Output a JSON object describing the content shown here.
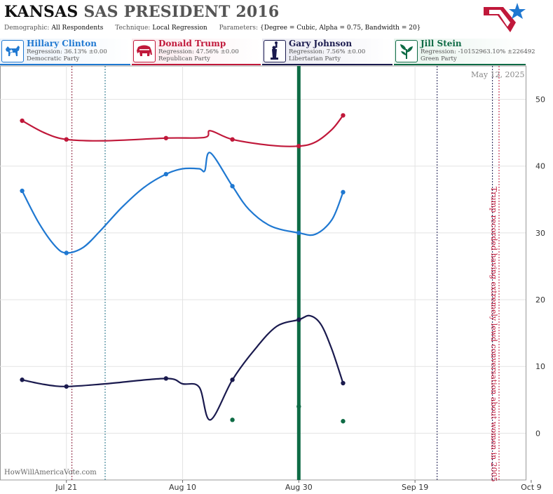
{
  "header": {
    "state": "KANSAS",
    "title_rest": "SAS PRESIDENT 2016",
    "demographic_label": "Demographic:",
    "demographic_value": "All Respondents",
    "technique_label": "Technique:",
    "technique_value": "Local Regression",
    "parameters_label": "Parameters:",
    "parameters_value": "{Degree = Cubic, Alpha = 0.75, Bandwidth = 20}"
  },
  "candidates": [
    {
      "name": "Hillary Clinton",
      "regression": "Regression: 36.13% ±0.00",
      "party": "Democratic Party",
      "color": "#1f78d1",
      "icon": "donkey-icon"
    },
    {
      "name": "Donald Trump",
      "regression": "Regression: 47.56% ±0.00",
      "party": "Republican Party",
      "color": "#c0183a",
      "icon": "elephant-icon"
    },
    {
      "name": "Gary Johnson",
      "regression": "Regression: 7.56% ±0.00",
      "party": "Libertarian Party",
      "color": "#1a1a4e",
      "icon": "statue-of-liberty-icon"
    },
    {
      "name": "Jill Stein",
      "regression": "Regression: -10152963.10% ±226492",
      "party": "Green Party",
      "color": "#0e6b45",
      "icon": "plant-icon"
    }
  ],
  "watermark": "HowWillAmericaVote.com",
  "date_label": "May 12, 2025",
  "annotation": "Trump recorded having extremely lewd conversation about women in 2005",
  "chart_data": {
    "type": "line",
    "x_tick_labels": [
      "Jul 21",
      "Aug 10",
      "Aug 30",
      "Sep 19",
      "Oct 9"
    ],
    "y_ticks": [
      0,
      10,
      20,
      30,
      40,
      50
    ],
    "ylim": [
      -7,
      55
    ],
    "xlim": [
      "2016-07-09",
      "2016-10-12"
    ],
    "grid": true,
    "highlight_line_date": "2016-09-01",
    "series": [
      {
        "name": "Hillary Clinton",
        "color": "#1f78d1",
        "points": [
          [
            "2016-07-13",
            36.3
          ],
          [
            "2016-07-21",
            27.0
          ],
          [
            "2016-08-08",
            38.8
          ],
          [
            "2016-08-20",
            37.0
          ],
          [
            "2016-09-01",
            30.0
          ],
          [
            "2016-09-09",
            36.1
          ]
        ],
        "curve": [
          [
            "2016-07-13",
            36.3
          ],
          [
            "2016-07-16",
            31.5
          ],
          [
            "2016-07-19",
            28.0
          ],
          [
            "2016-07-21",
            27.0
          ],
          [
            "2016-07-24",
            27.8
          ],
          [
            "2016-07-27",
            30.2
          ],
          [
            "2016-07-31",
            33.8
          ],
          [
            "2016-08-04",
            36.8
          ],
          [
            "2016-08-08",
            38.8
          ],
          [
            "2016-08-11",
            39.6
          ],
          [
            "2016-08-14",
            39.6
          ],
          [
            "2016-08-15",
            39.3
          ],
          [
            "2016-08-16",
            42.0
          ],
          [
            "2016-08-20",
            37.0
          ],
          [
            "2016-08-23",
            33.5
          ],
          [
            "2016-08-27",
            31.0
          ],
          [
            "2016-09-01",
            30.0
          ],
          [
            "2016-09-04",
            29.8
          ],
          [
            "2016-09-07",
            32.0
          ],
          [
            "2016-09-09",
            36.1
          ]
        ]
      },
      {
        "name": "Donald Trump",
        "color": "#c0183a",
        "points": [
          [
            "2016-07-13",
            46.8
          ],
          [
            "2016-07-21",
            44.0
          ],
          [
            "2016-08-08",
            44.2
          ],
          [
            "2016-08-20",
            44.0
          ],
          [
            "2016-09-01",
            43.0
          ],
          [
            "2016-09-09",
            47.6
          ]
        ],
        "curve": [
          [
            "2016-07-13",
            46.8
          ],
          [
            "2016-07-17",
            45.0
          ],
          [
            "2016-07-21",
            44.0
          ],
          [
            "2016-07-28",
            43.8
          ],
          [
            "2016-08-08",
            44.2
          ],
          [
            "2016-08-15",
            44.3
          ],
          [
            "2016-08-16",
            45.3
          ],
          [
            "2016-08-20",
            44.0
          ],
          [
            "2016-08-27",
            43.1
          ],
          [
            "2016-09-01",
            43.0
          ],
          [
            "2016-09-04",
            43.6
          ],
          [
            "2016-09-07",
            45.5
          ],
          [
            "2016-09-09",
            47.6
          ]
        ]
      },
      {
        "name": "Gary Johnson",
        "color": "#1a1a4e",
        "points": [
          [
            "2016-07-13",
            8.0
          ],
          [
            "2016-07-21",
            7.0
          ],
          [
            "2016-08-08",
            8.2
          ],
          [
            "2016-08-20",
            8.0
          ],
          [
            "2016-09-01",
            17.0
          ],
          [
            "2016-09-09",
            7.5
          ]
        ],
        "curve": [
          [
            "2016-07-13",
            8.0
          ],
          [
            "2016-07-17",
            7.3
          ],
          [
            "2016-07-21",
            7.0
          ],
          [
            "2016-07-28",
            7.4
          ],
          [
            "2016-08-08",
            8.2
          ],
          [
            "2016-08-11",
            7.4
          ],
          [
            "2016-08-14",
            6.9
          ],
          [
            "2016-08-16",
            2.0
          ],
          [
            "2016-08-20",
            8.0
          ],
          [
            "2016-08-24",
            12.5
          ],
          [
            "2016-08-28",
            16.0
          ],
          [
            "2016-09-01",
            17.0
          ],
          [
            "2016-09-03",
            17.6
          ],
          [
            "2016-09-05",
            16.3
          ],
          [
            "2016-09-07",
            12.5
          ],
          [
            "2016-09-09",
            7.5
          ]
        ]
      },
      {
        "name": "Jill Stein",
        "color": "#0e6b45",
        "points": [
          [
            "2016-08-20",
            2.0
          ],
          [
            "2016-09-01",
            4.0
          ],
          [
            "2016-09-09",
            1.8
          ]
        ],
        "curve": []
      }
    ],
    "event_lines": [
      {
        "date": "2016-07-22",
        "color": "#8a1f3a"
      },
      {
        "date": "2016-07-28",
        "color": "#1c6f86"
      },
      {
        "date": "2016-09-26",
        "color": "#1a1a4e"
      },
      {
        "date": "2016-10-06",
        "color": "#1a1a4e"
      },
      {
        "date": "2016-10-10",
        "color": "#c0183a"
      },
      {
        "date": "2016-10-12",
        "color": "#c0183a"
      }
    ]
  }
}
